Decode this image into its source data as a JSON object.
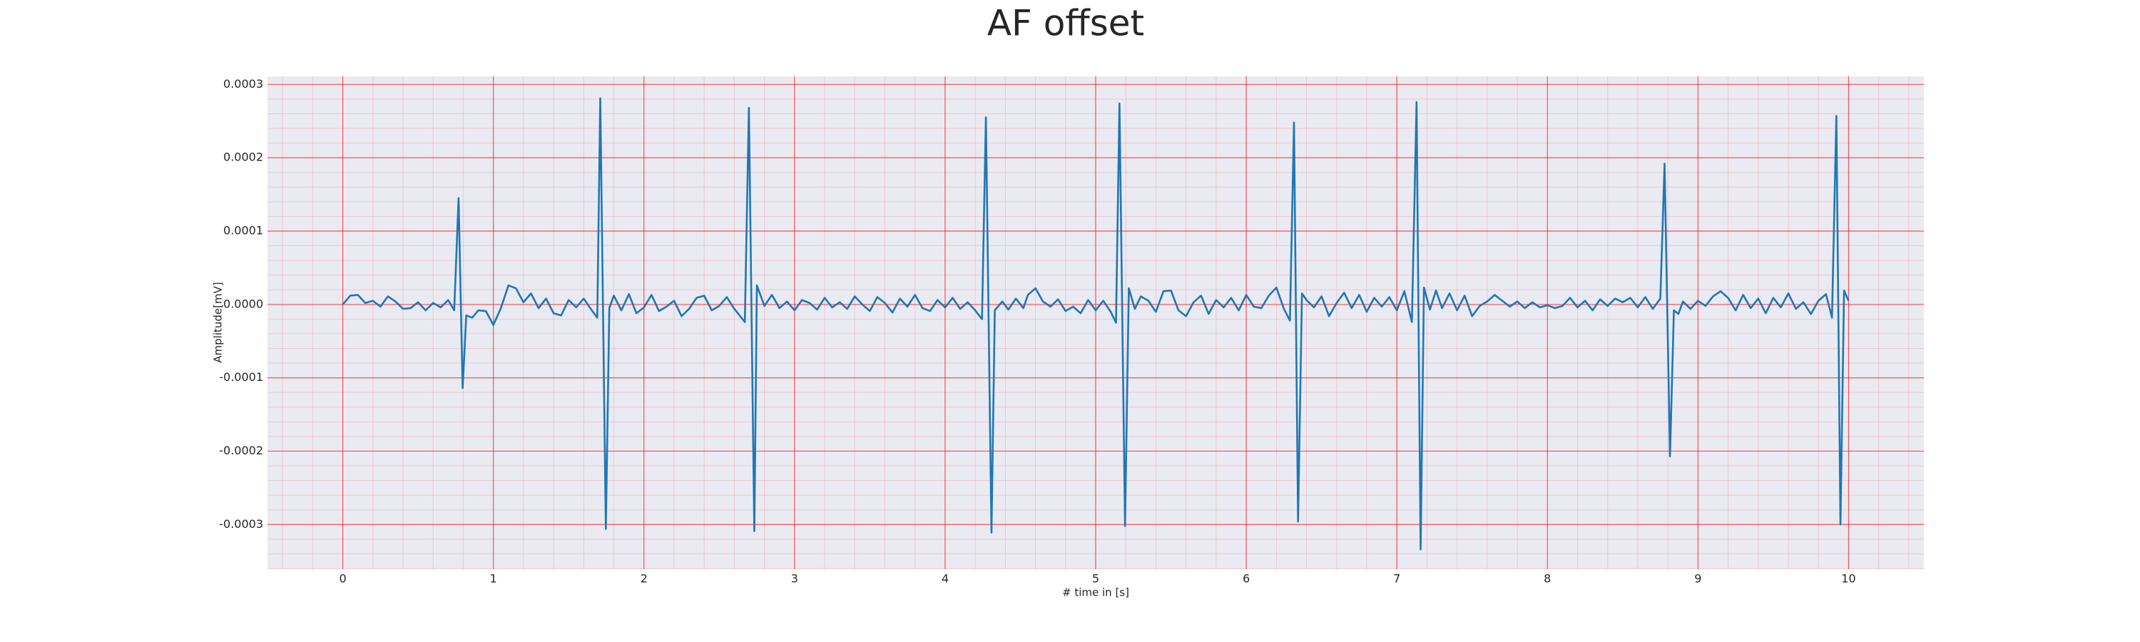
{
  "chart_data": {
    "type": "line",
    "title": "AF offset",
    "x_label": "# time in [s]",
    "y_label": "Amplitude[mV]",
    "color": "#1f77b4",
    "grid": true,
    "minor_grid": true,
    "xlim": [
      -0.5,
      10.5
    ],
    "xticks": [
      0,
      1,
      2,
      3,
      4,
      5,
      6,
      7,
      8,
      9,
      10
    ],
    "ylim": [
      -0.000361,
      0.000311
    ],
    "yticks": [
      -0.0003,
      -0.0002,
      -0.0001,
      {
        "value": 0,
        "label": "0.0000"
      },
      0.0001,
      0.0002,
      0.0003
    ],
    "x": [
      0,
      0.05,
      0.1,
      0.15,
      0.2,
      0.25,
      0.3,
      0.35,
      0.4,
      0.45,
      0.5,
      0.55,
      0.6,
      0.65,
      0.7,
      0.74,
      0.769,
      0.796,
      0.82,
      0.86,
      0.9,
      0.95,
      1.0,
      1.05,
      1.1,
      1.15,
      1.2,
      1.25,
      1.3,
      1.35,
      1.4,
      1.45,
      1.5,
      1.55,
      1.6,
      1.65,
      1.69,
      1.71,
      1.747,
      1.77,
      1.8,
      1.85,
      1.9,
      1.95,
      2.0,
      2.05,
      2.1,
      2.15,
      2.2,
      2.25,
      2.3,
      2.35,
      2.4,
      2.45,
      2.5,
      2.55,
      2.6,
      2.67,
      2.697,
      2.733,
      2.75,
      2.8,
      2.85,
      2.9,
      2.95,
      3.0,
      3.05,
      3.1,
      3.15,
      3.2,
      3.25,
      3.3,
      3.35,
      3.4,
      3.45,
      3.5,
      3.55,
      3.6,
      3.65,
      3.7,
      3.75,
      3.8,
      3.85,
      3.9,
      3.95,
      4.0,
      4.05,
      4.1,
      4.15,
      4.2,
      4.245,
      4.271,
      4.308,
      4.33,
      4.38,
      4.42,
      4.47,
      4.52,
      4.55,
      4.6,
      4.65,
      4.7,
      4.75,
      4.8,
      4.85,
      4.9,
      4.95,
      5.0,
      5.05,
      5.1,
      5.135,
      5.158,
      5.195,
      5.22,
      5.26,
      5.3,
      5.35,
      5.4,
      5.45,
      5.5,
      5.55,
      5.6,
      5.65,
      5.7,
      5.75,
      5.8,
      5.85,
      5.9,
      5.95,
      6.0,
      6.05,
      6.1,
      6.15,
      6.2,
      6.25,
      6.29,
      6.317,
      6.344,
      6.37,
      6.4,
      6.45,
      6.5,
      6.55,
      6.6,
      6.65,
      6.7,
      6.75,
      6.8,
      6.85,
      6.9,
      6.95,
      7.0,
      7.05,
      7.1,
      7.131,
      7.158,
      7.18,
      7.22,
      7.26,
      7.3,
      7.35,
      7.4,
      7.45,
      7.5,
      7.55,
      7.6,
      7.65,
      7.7,
      7.75,
      7.8,
      7.85,
      7.9,
      7.95,
      8.0,
      8.05,
      8.1,
      8.15,
      8.2,
      8.25,
      8.3,
      8.35,
      8.4,
      8.45,
      8.5,
      8.55,
      8.6,
      8.65,
      8.7,
      8.75,
      8.778,
      8.814,
      8.84,
      8.87,
      8.9,
      8.95,
      9.0,
      9.05,
      9.1,
      9.15,
      9.2,
      9.25,
      9.3,
      9.35,
      9.4,
      9.45,
      9.5,
      9.55,
      9.6,
      9.65,
      9.7,
      9.75,
      9.8,
      9.85,
      9.89,
      9.919,
      9.946,
      9.97,
      10.0
    ],
    "values": [
      0,
      1.2e-05,
      1.3e-05,
      2e-06,
      5e-06,
      -3e-06,
      1.1e-05,
      4e-06,
      -6e-06,
      -5e-06,
      3e-06,
      -8e-06,
      2e-06,
      -4e-06,
      6e-06,
      -8e-06,
      0.000145,
      -0.000114,
      -1.5e-05,
      -1.8e-05,
      -8e-06,
      -9e-06,
      -2.8e-05,
      -5e-06,
      2.6e-05,
      2.2e-05,
      3e-06,
      1.5e-05,
      -5e-06,
      8e-06,
      -1.2e-05,
      -1.5e-05,
      6e-06,
      -4e-06,
      8e-06,
      -7e-06,
      -1.8e-05,
      0.000281,
      -0.000306,
      -5e-06,
      1.2e-05,
      -8e-06,
      1.4e-05,
      -1.2e-05,
      -4e-06,
      1.3e-05,
      -9e-06,
      -3e-06,
      5e-06,
      -1.6e-05,
      -6e-06,
      9e-06,
      1.2e-05,
      -8e-06,
      -2e-06,
      1e-05,
      -6e-06,
      -2.4e-05,
      0.000268,
      -0.000309,
      2.6e-05,
      -2e-06,
      1.3e-05,
      -5e-06,
      4e-06,
      -8e-06,
      6e-06,
      2e-06,
      -7e-06,
      9e-06,
      -4e-06,
      3e-06,
      -6e-06,
      1.1e-05,
      0,
      -9e-06,
      1e-05,
      2e-06,
      -1.1e-05,
      8e-06,
      -3e-06,
      1.3e-05,
      -5e-06,
      -9e-06,
      6e-06,
      -4e-06,
      9e-06,
      -6e-06,
      3e-06,
      -8e-06,
      -2e-05,
      0.000255,
      -0.000311,
      -8e-06,
      4e-06,
      -7e-06,
      8e-06,
      -5e-06,
      1.3e-05,
      2.2e-05,
      4e-06,
      -3e-06,
      7e-06,
      -9e-06,
      -3e-06,
      -1.2e-05,
      6e-06,
      -8e-06,
      5e-06,
      -1e-05,
      -2.5e-05,
      0.000274,
      -0.000302,
      2.2e-05,
      -6e-06,
      1.1e-05,
      5e-06,
      -1e-05,
      1.8e-05,
      1.9e-05,
      -8e-06,
      -1.6e-05,
      3e-06,
      1.2e-05,
      -1.3e-05,
      6e-06,
      -4e-06,
      9e-06,
      -8e-06,
      1.3e-05,
      -3e-06,
      -5e-06,
      1.2e-05,
      2.3e-05,
      -6e-06,
      -2.2e-05,
      0.000248,
      -0.000296,
      1.5e-05,
      6e-06,
      -4e-06,
      1.1e-05,
      -1.6e-05,
      2e-06,
      1.6e-05,
      -5e-06,
      1.3e-05,
      -1e-05,
      9e-06,
      -3e-06,
      1e-05,
      -8e-06,
      1.8e-05,
      -2.4e-05,
      0.000276,
      -0.000334,
      2.3e-05,
      -7e-06,
      1.9e-05,
      -5e-06,
      1.5e-05,
      -8e-06,
      1.2e-05,
      -1.6e-05,
      -2e-06,
      4e-06,
      1.3e-05,
      5e-06,
      -3e-06,
      4e-06,
      -5e-06,
      3e-06,
      -4e-06,
      -1e-06,
      -5e-06,
      -2e-06,
      9e-06,
      -4e-06,
      5e-06,
      -8e-06,
      7e-06,
      -2e-06,
      8e-06,
      3e-06,
      9e-06,
      -4e-06,
      1e-05,
      -6e-06,
      8e-06,
      0.000192,
      -0.000207,
      -8e-06,
      -1.3e-05,
      4e-06,
      -6e-06,
      5e-06,
      -2e-06,
      1.1e-05,
      1.8e-05,
      9e-06,
      -8e-06,
      1.3e-05,
      -5e-06,
      8e-06,
      -1.2e-05,
      9e-06,
      -4e-06,
      1.5e-05,
      -6e-06,
      3e-06,
      -1.3e-05,
      5e-06,
      1.4e-05,
      -1.8e-05,
      0.000257,
      -0.0003,
      1.9e-05,
      5e-06
    ]
  }
}
